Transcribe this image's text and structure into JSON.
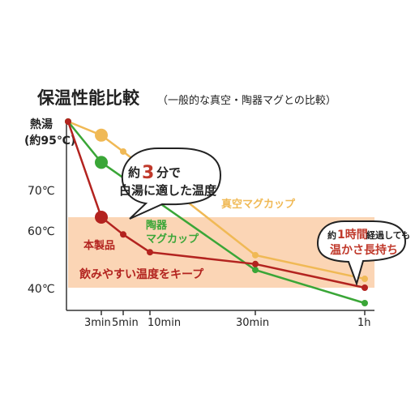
{
  "chart_data": {
    "type": "line",
    "title": "保温性能比較",
    "subtitle": "（一般的な真空・陶器マグとの比較）",
    "x_ticks": [
      "3min",
      "5min",
      "10min",
      "30min",
      "1h"
    ],
    "y_ticks": [
      {
        "value": 95,
        "line1": "熱湯",
        "line2": "(約95℃)"
      },
      {
        "value": 70,
        "label": "70℃"
      },
      {
        "value": 60,
        "label": "60℃"
      },
      {
        "value": 40,
        "label": "40℃"
      }
    ],
    "band": {
      "from": 40,
      "to": 63,
      "label": "飲みやすい温度をキープ",
      "color": "#fbd5b5"
    },
    "series": [
      {
        "name": "真空マグカップ",
        "color": "#f0b955",
        "points": [
          [
            "0min",
            95
          ],
          [
            "3min",
            90
          ],
          [
            "5min",
            84
          ],
          [
            "30min",
            51
          ],
          [
            "1h",
            43
          ]
        ]
      },
      {
        "name": "陶器マグカップ",
        "label_line1": "陶器",
        "label_line2": "マグカップ",
        "color": "#3aa637",
        "points": [
          [
            "0min",
            95
          ],
          [
            "3min",
            80
          ],
          [
            "30min",
            46
          ],
          [
            "1h",
            36
          ]
        ]
      },
      {
        "name": "本製品",
        "color": "#b3231f",
        "points": [
          [
            "0min",
            95
          ],
          [
            "3min",
            63
          ],
          [
            "5min",
            58
          ],
          [
            "10min",
            52
          ],
          [
            "30min",
            48
          ],
          [
            "1h",
            40
          ]
        ]
      }
    ],
    "callouts": {
      "white_water": {
        "prefix": "約",
        "emph": "3",
        "suffix": "分で",
        "line2": "白湯に適した温度"
      },
      "one_hour": {
        "prefix": "約",
        "emph": "1時間",
        "suffix": "経過しても",
        "line2": "温かさ長持ち"
      }
    }
  }
}
